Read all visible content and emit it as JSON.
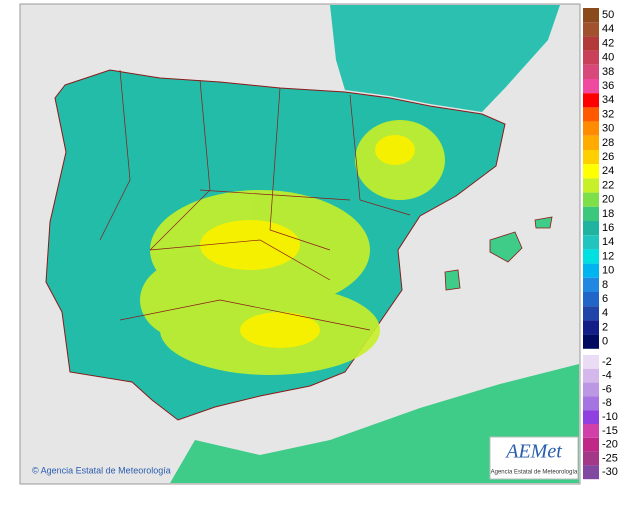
{
  "footer": {
    "copyright": "© Agencia Estatal de Meteorología"
  },
  "logo": {
    "name": "AEMet",
    "subtitle": "Agencia Estatal de Meteorología"
  },
  "legend": {
    "positive": [
      {
        "label": 50,
        "color": "#8b4a1c"
      },
      {
        "label": 44,
        "color": "#a0522d"
      },
      {
        "label": 42,
        "color": "#b33a3a"
      },
      {
        "label": 40,
        "color": "#c8405a"
      },
      {
        "label": 38,
        "color": "#d8487a"
      },
      {
        "label": 36,
        "color": "#f04aa0"
      },
      {
        "label": 34,
        "color": "#ff0000"
      },
      {
        "label": 32,
        "color": "#ff5a00"
      },
      {
        "label": 30,
        "color": "#ff8c00"
      },
      {
        "label": 28,
        "color": "#ffab00"
      },
      {
        "label": 26,
        "color": "#ffd000"
      },
      {
        "label": 24,
        "color": "#ffff00"
      },
      {
        "label": 22,
        "color": "#c8f028"
      },
      {
        "label": 20,
        "color": "#7ee048"
      },
      {
        "label": 18,
        "color": "#3cc87c"
      },
      {
        "label": 16,
        "color": "#20b4a0"
      },
      {
        "label": 14,
        "color": "#22c4c0"
      },
      {
        "label": 12,
        "color": "#00e0e0"
      },
      {
        "label": 10,
        "color": "#00b4f0"
      },
      {
        "label": 8,
        "color": "#2088e0"
      },
      {
        "label": 6,
        "color": "#2066c8"
      },
      {
        "label": 4,
        "color": "#2044a8"
      },
      {
        "label": 2,
        "color": "#141e88"
      },
      {
        "label": 0,
        "color": "#000a60"
      }
    ],
    "negative": [
      {
        "label": -2,
        "color": "#eadcf4"
      },
      {
        "label": -4,
        "color": "#d4b8ec"
      },
      {
        "label": -6,
        "color": "#bc98e4"
      },
      {
        "label": -8,
        "color": "#a474e0"
      },
      {
        "label": -10,
        "color": "#9040e0"
      },
      {
        "label": -15,
        "color": "#d040a8"
      },
      {
        "label": -20,
        "color": "#c02888"
      },
      {
        "label": -25,
        "color": "#a43888"
      },
      {
        "label": -30,
        "color": "#8048a0"
      }
    ]
  }
}
